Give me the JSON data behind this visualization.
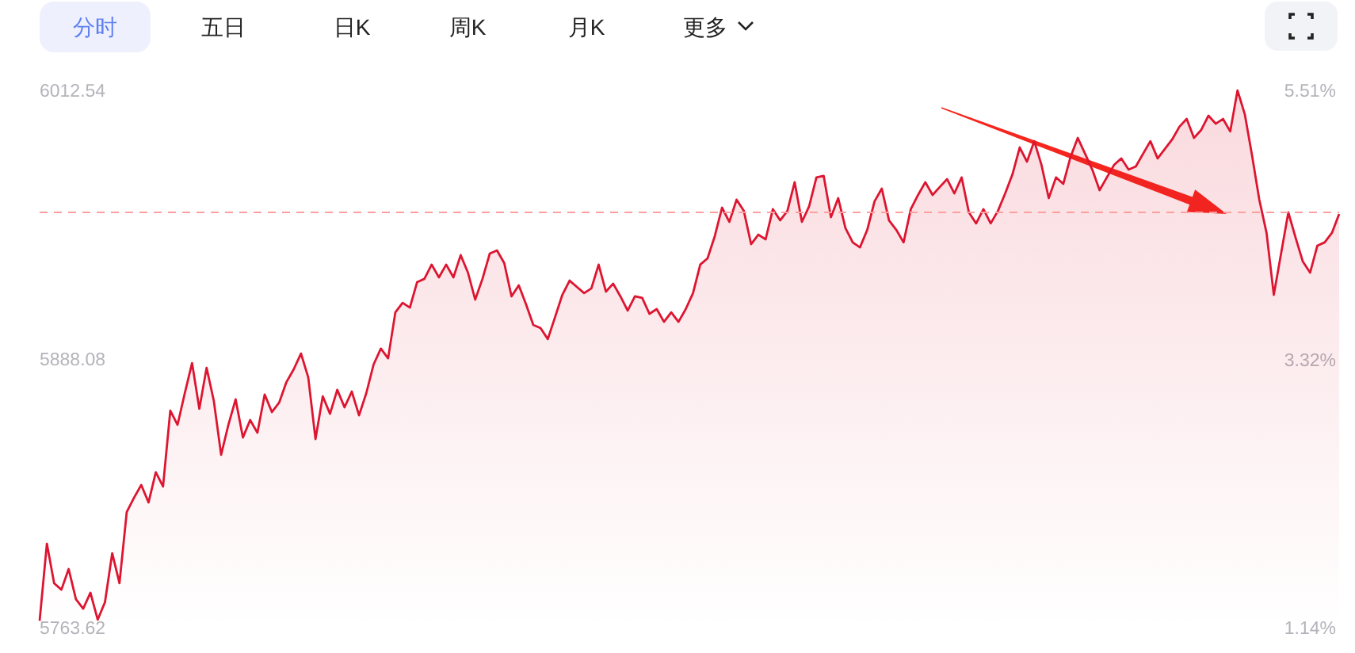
{
  "chart_data": {
    "type": "area",
    "annotations": [
      "分时",
      "五日",
      "日K",
      "周K",
      "月K",
      "更多"
    ],
    "categories": [
      null,
      null,
      null,
      null,
      null,
      null,
      null,
      null,
      null,
      null,
      null,
      null,
      null,
      null,
      null,
      null,
      null,
      null,
      null,
      null,
      null,
      null,
      null,
      null,
      null,
      null,
      null,
      null,
      null,
      null,
      null,
      null,
      null,
      null,
      null,
      null,
      null,
      null,
      null,
      null,
      null,
      null,
      null,
      null,
      null,
      null,
      null,
      null,
      null,
      null,
      null,
      null,
      null,
      null,
      null,
      null,
      null,
      null,
      null,
      null,
      null,
      null,
      null,
      null,
      null,
      null,
      null,
      null,
      null,
      null,
      null,
      null,
      null,
      null,
      null,
      null,
      null,
      null,
      null,
      null,
      null,
      null,
      null,
      null,
      null,
      null,
      null,
      null,
      null,
      null,
      null,
      null,
      null,
      null,
      null,
      null,
      null,
      null,
      null,
      null,
      null,
      null,
      null,
      null,
      null,
      null,
      null,
      null,
      null,
      null,
      null,
      null,
      null,
      null,
      null,
      null,
      null,
      null,
      null,
      null,
      null,
      null,
      null,
      null,
      null,
      null,
      null,
      null,
      null,
      null,
      null,
      null,
      null,
      null,
      null,
      null,
      null,
      null,
      null,
      null,
      null,
      null,
      null,
      null,
      null,
      null,
      null,
      null,
      null,
      null,
      null,
      null,
      null,
      null,
      null,
      null,
      null,
      null,
      null,
      null,
      null,
      null,
      null,
      null,
      null,
      null,
      null,
      null,
      null,
      null,
      null,
      null,
      null,
      null,
      null,
      null,
      null,
      null,
      null,
      null
    ],
    "series": [
      {
        "color": "#dd1530",
        "values": [
          5766.8,
          5802.5,
          5784.2,
          5781.2,
          5790.8,
          5776.8,
          5772.4,
          5779.8,
          5767.3,
          5775.4,
          5798.1,
          5784.2,
          5817.2,
          5823.8,
          5829.7,
          5821.6,
          5835.6,
          5829.0,
          5864.2,
          5857.6,
          5872.3,
          5886.2,
          5865.0,
          5884.0,
          5868.6,
          5843.7,
          5857.6,
          5869.4,
          5851.7,
          5859.8,
          5853.9,
          5871.6,
          5863.5,
          5867.9,
          5877.4,
          5883.3,
          5890.6,
          5879.6,
          5851.0,
          5870.8,
          5862.7,
          5873.8,
          5865.7,
          5873.0,
          5862.0,
          5872.3,
          5885.5,
          5892.9,
          5888.4,
          5909.7,
          5914.1,
          5911.9,
          5923.7,
          5925.2,
          5931.8,
          5925.9,
          5931.8,
          5925.9,
          5936.2,
          5928.1,
          5915.6,
          5925.2,
          5936.9,
          5938.4,
          5932.5,
          5917.1,
          5922.2,
          5913.4,
          5903.9,
          5902.4,
          5897.3,
          5907.5,
          5917.8,
          5924.4,
          5921.5,
          5918.6,
          5920.8,
          5931.8,
          5919.3,
          5923.0,
          5917.1,
          5910.5,
          5917.1,
          5916.4,
          5909.0,
          5911.2,
          5905.3,
          5909.7,
          5905.3,
          5911.2,
          5918.6,
          5931.8,
          5934.7,
          5945.0,
          5958.2,
          5951.6,
          5961.9,
          5956.7,
          5941.3,
          5945.7,
          5943.5,
          5957.5,
          5952.3,
          5956.7,
          5970.0,
          5951.6,
          5958.9,
          5972.2,
          5972.9,
          5953.8,
          5962.6,
          5948.7,
          5942.1,
          5939.8,
          5947.9,
          5961.1,
          5967.0,
          5952.3,
          5947.9,
          5942.1,
          5957.5,
          5964.1,
          5970.0,
          5964.1,
          5967.8,
          5971.4,
          5964.8,
          5972.2,
          5956.0,
          5950.9,
          5957.5,
          5950.9,
          5956.7,
          5964.8,
          5973.6,
          5986.1,
          5979.5,
          5989.0,
          5978.0,
          5962.6,
          5972.2,
          5969.2,
          5981.7,
          5990.5,
          5983.2,
          5975.8,
          5966.3,
          5972.2,
          5978.0,
          5981.0,
          5975.8,
          5977.3,
          5983.2,
          5989.0,
          5981.0,
          5985.4,
          5989.8,
          5995.7,
          5999.3,
          5990.5,
          5994.2,
          6000.8,
          5997.1,
          5999.3,
          5993.5,
          6012.5,
          6001.5,
          5982.4,
          5961.9,
          5946.5,
          5917.8,
          5936.9,
          5956.0,
          5944.3,
          5933.2,
          5928.1,
          5940.6,
          5942.1,
          5946.5,
          5955.3
        ]
      }
    ],
    "ylim": [
      5763.62,
      6012.54
    ],
    "yticks": [
      5763.62,
      5888.08,
      6012.54
    ],
    "y2lim": [
      1.14,
      5.51
    ],
    "y2ticks": [
      {
        "value": 1.14,
        "label": "1.14%"
      },
      {
        "value": 3.32,
        "label": "3.32%"
      },
      {
        "value": 5.51,
        "label": "5.51%"
      }
    ],
    "ref_lines": [
      {
        "axis": "y",
        "value": 5956.0,
        "color": "#ff9e9e",
        "line_style": "dashed"
      }
    ],
    "grid": false,
    "line_style": "solid",
    "marker": "none"
  }
}
